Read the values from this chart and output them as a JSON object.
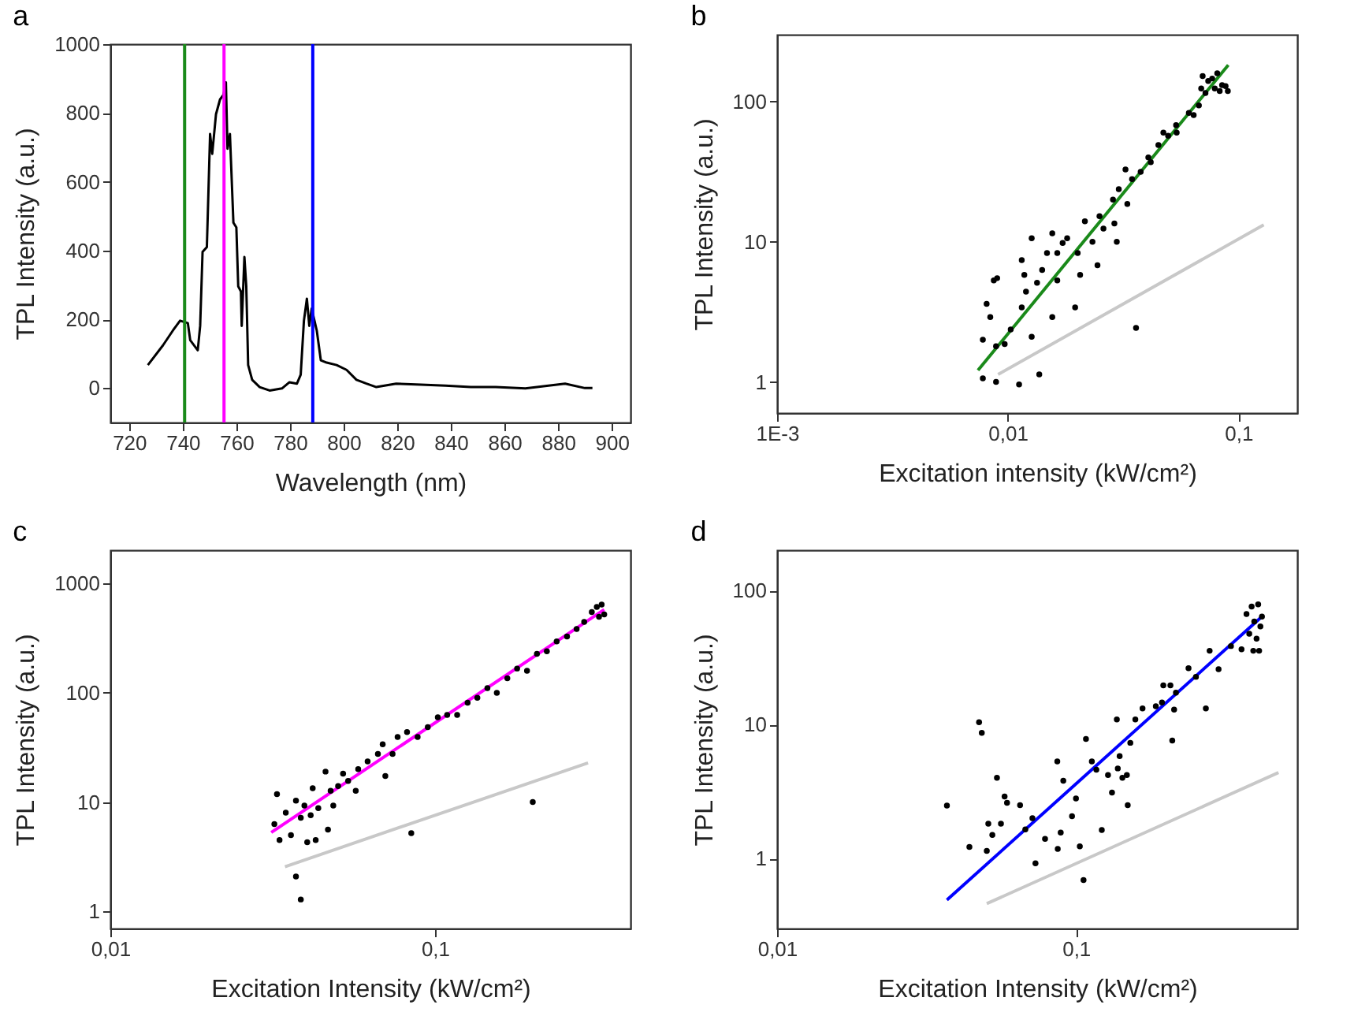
{
  "chart_data": [
    {
      "type": "line",
      "annotations": [
        "a"
      ],
      "xlabel": "Wavelength (nm)",
      "ylabel": "TPL Intensity (a.u.)",
      "xlim": [
        713,
        907
      ],
      "ylim": [
        -100,
        1000
      ],
      "xticks": [
        720,
        740,
        760,
        780,
        800,
        820,
        840,
        860,
        880,
        900
      ],
      "yticks": [
        0,
        200,
        400,
        600,
        800,
        1000
      ],
      "series": [
        {
          "color": "#000000",
          "x": [
            727,
            732.6,
            736.3,
            739,
            741.9,
            742.8,
            745.6,
            746.5,
            747.4,
            749,
            750.2,
            751,
            752.4,
            753.9,
            755.2,
            756.1,
            756.7,
            757.6,
            758.9,
            760,
            760.7,
            761.7,
            762,
            763,
            763.7,
            764.4,
            765.9,
            768.7,
            772.4,
            777,
            779.8,
            782.6,
            784,
            785.2,
            786.3,
            787.2,
            788.1,
            790,
            791.5,
            793.7,
            797.4,
            801.1,
            804.8,
            808.5,
            812.2,
            819.6,
            828.9,
            838,
            847.4,
            856.7,
            867.8,
            875.2,
            882.6,
            890,
            892.8
          ],
          "values": [
            67,
            124,
            167,
            196,
            189,
            139,
            110,
            181,
            396,
            410,
            739,
            681,
            796,
            839,
            853,
            889,
            696,
            739,
            481,
            467,
            296,
            281,
            181,
            381,
            296,
            67,
            24,
            3,
            -7,
            -1,
            17,
            13,
            39,
            196,
            260,
            181,
            231,
            167,
            81,
            74,
            67,
            53,
            24,
            13,
            3,
            13,
            10,
            7,
            3,
            3,
            -1,
            6,
            13,
            0,
            0
          ]
        }
      ],
      "ref_lines": [
        {
          "axis": "x",
          "value": 740.7,
          "color": "#1a8a1a"
        },
        {
          "axis": "x",
          "value": 755.4,
          "color": "#ff00ff"
        },
        {
          "axis": "x",
          "value": 788.5,
          "color": "#0000ff"
        }
      ]
    },
    {
      "type": "scatter",
      "annotations": [
        "b"
      ],
      "xlabel": "Excitation intensity (kW/cm²)",
      "ylabel": "TPL Intensity (a.u.)",
      "log": "xy",
      "xlim": [
        0.001,
        0.18
      ],
      "ylim": [
        0.6,
        300
      ],
      "xticks": [
        {
          "value": 0.001,
          "label": "1E-3"
        },
        {
          "value": 0.01,
          "label": "0,01"
        },
        {
          "value": 0.1,
          "label": "0,1"
        }
      ],
      "yticks": [
        1,
        10,
        100
      ],
      "series": [
        {
          "color": "#000000",
          "marker": "circle",
          "x": [
            0.0078,
            0.0081,
            0.0084,
            0.0087,
            0.009,
            0.0089,
            0.0078,
            0.0089,
            0.0097,
            0.0103,
            0.0112,
            0.0115,
            0.0115,
            0.0118,
            0.0127,
            0.0127,
            0.0137,
            0.012,
            0.0134,
            0.0141,
            0.0148,
            0.0156,
            0.0164,
            0.0156,
            0.0164,
            0.0173,
            0.0181,
            0.0196,
            0.0206,
            0.0201,
            0.0216,
            0.0233,
            0.0245,
            0.025,
            0.026,
            0.0286,
            0.029,
            0.0297,
            0.0303,
            0.0324,
            0.033,
            0.0346,
            0.036,
            0.0377,
            0.0407,
            0.0417,
            0.045,
            0.0473,
            0.0496,
            0.054,
            0.0537,
            0.061,
            0.064,
            0.0674,
            0.069,
            0.07,
            0.074,
            0.077,
            0.079,
            0.081,
            0.085,
            0.088,
            0.09,
            0.072,
            0.083
          ],
          "values": [
            2.0,
            3.6,
            2.9,
            5.3,
            5.5,
            1.8,
            1.06,
            1.0,
            1.86,
            2.37,
            0.96,
            7.4,
            3.4,
            5.8,
            10.6,
            2.1,
            1.13,
            4.4,
            5.1,
            6.3,
            8.3,
            11.5,
            8.3,
            2.9,
            5.3,
            9.8,
            10.6,
            3.4,
            5.8,
            8.3,
            14,
            10,
            6.8,
            15.2,
            12.4,
            20,
            13.5,
            10,
            23.7,
            32.8,
            18.6,
            28,
            2.43,
            31.5,
            40,
            37,
            49,
            60,
            57,
            60,
            68,
            83,
            80,
            94,
            124,
            152,
            140,
            146,
            124,
            159,
            131,
            129,
            119,
            115,
            119
          ]
        },
        {
          "type": "line",
          "color": "#1a8a1a",
          "x": [
            0.00743,
            0.0904
          ],
          "values": [
            1.21,
            182
          ]
        },
        {
          "type": "line",
          "color": "#c8c8c8",
          "x": [
            0.00908,
            0.1288
          ],
          "values": [
            1.13,
            13.2
          ]
        }
      ]
    },
    {
      "type": "scatter",
      "annotations": [
        "c"
      ],
      "xlabel": "Excitation Intensity (kW/cm²)",
      "ylabel": "TPL Intensity (a.u.)",
      "log": "xy",
      "xlim": [
        0.01,
        0.4
      ],
      "ylim": [
        0.7,
        2000
      ],
      "xticks": [
        {
          "value": 0.01,
          "label": "0,01"
        },
        {
          "value": 0.1,
          "label": "0,1"
        }
      ],
      "yticks": [
        1,
        10,
        100,
        1000
      ],
      "series": [
        {
          "color": "#000000",
          "marker": "circle",
          "x": [
            0.0326,
            0.032,
            0.0332,
            0.0347,
            0.036,
            0.0373,
            0.0386,
            0.0373,
            0.0386,
            0.0396,
            0.0404,
            0.0414,
            0.042,
            0.0429,
            0.0437,
            0.046,
            0.0468,
            0.0477,
            0.0486,
            0.0503,
            0.0521,
            0.054,
            0.057,
            0.058,
            0.062,
            0.0667,
            0.069,
            0.0703,
            0.074,
            0.0767,
            0.082,
            0.0845,
            0.0884,
            0.095,
            0.102,
            0.109,
            0.117,
            0.126,
            0.135,
            0.145,
            0.155,
            0.167,
            0.179,
            0.192,
            0.2,
            0.206,
            0.221,
            0.237,
            0.255,
            0.273,
            0.288,
            0.304,
            0.315,
            0.32,
            0.326,
            0.332
          ],
          "values": [
            11.8,
            6.3,
            4.5,
            8,
            5.0,
            2.09,
            1.29,
            10.3,
            7.2,
            9.3,
            4.3,
            7.6,
            13.4,
            4.5,
            8.8,
            19,
            5.6,
            12.7,
            9.3,
            14,
            18.2,
            15.6,
            12.7,
            20,
            23.5,
            27.5,
            33.7,
            17.3,
            27.5,
            39.4,
            43.6,
            5.2,
            39.4,
            48.4,
            59.5,
            62.6,
            62.6,
            81,
            89.7,
            110,
            99.6,
            135,
            166,
            158,
            10,
            226,
            239,
            294,
            326,
            381,
            443,
            545,
            607,
            492,
            637,
            518
          ]
        },
        {
          "type": "line",
          "color": "#ff00ff",
          "x": [
            0.0313,
            0.332
          ],
          "values": [
            5.28,
            573
          ]
        },
        {
          "type": "line",
          "color": "#c8c8c8",
          "x": [
            0.0345,
            0.296
          ],
          "values": [
            2.57,
            22.8
          ]
        }
      ]
    },
    {
      "type": "scatter",
      "annotations": [
        "d"
      ],
      "xlabel": "Excitation Intensity (kW/cm²)",
      "ylabel": "TPL Intensity (a.u.)",
      "log": "xy",
      "xlim": [
        0.01,
        0.55
      ],
      "ylim": [
        0.3,
        200
      ],
      "xticks": [
        {
          "value": 0.01,
          "label": "0,01"
        },
        {
          "value": 0.1,
          "label": "0,1"
        }
      ],
      "yticks": [
        1,
        10,
        100
      ],
      "series": [
        {
          "color": "#000000",
          "marker": "circle",
          "x": [
            0.037,
            0.044,
            0.0474,
            0.0484,
            0.0503,
            0.0509,
            0.0525,
            0.0544,
            0.0561,
            0.0577,
            0.0588,
            0.065,
            0.0677,
            0.0715,
            0.0732,
            0.0788,
            0.0866,
            0.0869,
            0.0889,
            0.0907,
            0.097,
            0.1,
            0.103,
            0.106,
            0.108,
            0.113,
            0.117,
            0.122,
            0.128,
            0.132,
            0.137,
            0.138,
            0.14,
            0.143,
            0.148,
            0.149,
            0.152,
            0.158,
            0.167,
            0.185,
            0.194,
            0.196,
            0.207,
            0.21,
            0.213,
            0.216,
            0.238,
            0.252,
            0.272,
            0.28,
            0.3,
            0.33,
            0.358,
            0.372,
            0.38,
            0.387,
            0.392,
            0.395,
            0.402,
            0.407,
            0.41,
            0.414,
            0.419
          ],
          "values": [
            2.48,
            1.22,
            10.4,
            8.67,
            1.14,
            1.82,
            1.5,
            4.0,
            1.82,
            2.9,
            2.6,
            2.5,
            1.65,
            2.0,
            0.92,
            1.4,
            5.3,
            1.18,
            1.56,
            3.8,
            2.07,
            2.8,
            1.23,
            0.69,
            7.8,
            5.3,
            4.6,
            1.63,
            4.2,
            3.1,
            10.9,
            4.7,
            5.8,
            4.0,
            4.2,
            2.5,
            7.3,
            10.9,
            13.2,
            13.7,
            14.6,
            19.6,
            19.6,
            7.6,
            12.9,
            17.3,
            26.3,
            22.7,
            13.2,
            35.5,
            25.9,
            38.5,
            36.4,
            66.8,
            47.6,
            76,
            35.5,
            58.7,
            43.7,
            78.8,
            35.5,
            54,
            63.8
          ]
        },
        {
          "type": "line",
          "color": "#0000ff",
          "x": [
            0.037,
            0.414
          ],
          "values": [
            0.49,
            62.4
          ]
        },
        {
          "type": "line",
          "color": "#c8c8c8",
          "x": [
            0.0503,
            0.476
          ],
          "values": [
            0.46,
            4.38
          ]
        }
      ]
    }
  ]
}
